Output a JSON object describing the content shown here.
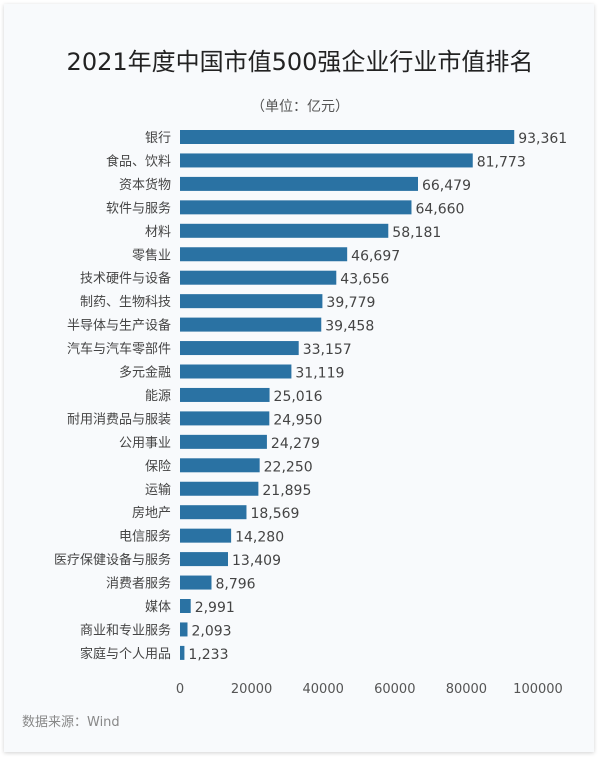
{
  "chart_data": {
    "type": "bar",
    "orientation": "horizontal",
    "title": "2021年度中国市值500强企业行业市值排名",
    "subtitle": "（单位：亿元）",
    "source": "数据来源：Wind",
    "categories": [
      "银行",
      "食品、饮料",
      "资本货物",
      "软件与服务",
      "材料",
      "零售业",
      "技术硬件与设备",
      "制药、生物科技",
      "半导体与生产设备",
      "汽车与汽车零部件",
      "多元金融",
      "能源",
      "耐用消费品与服装",
      "公用事业",
      "保险",
      "运输",
      "房地产",
      "电信服务",
      "医疗保健设备与服务",
      "消费者服务",
      "媒体",
      "商业和专业服务",
      "家庭与个人用品"
    ],
    "values": [
      93361,
      81773,
      66479,
      64660,
      58181,
      46697,
      43656,
      39779,
      39458,
      33157,
      31119,
      25016,
      24950,
      24279,
      22250,
      21895,
      18569,
      14280,
      13409,
      8796,
      2991,
      2093,
      1233
    ],
    "data_labels": [
      "93,361",
      "81,773",
      "66,479",
      "64,660",
      "58,181",
      "46,697",
      "43,656",
      "39,779",
      "39,458",
      "33,157",
      "31,119",
      "25,016",
      "24,950",
      "24,279",
      "22,250",
      "21,895",
      "18,569",
      "14,280",
      "13,409",
      "8,796",
      "2,991",
      "2,093",
      "1,233"
    ],
    "xlim": [
      0,
      100000
    ],
    "xticks": [
      "0",
      "20000",
      "40000",
      "60000",
      "80000",
      "100000"
    ],
    "grid": false,
    "bar_color": "#2a72a3"
  }
}
